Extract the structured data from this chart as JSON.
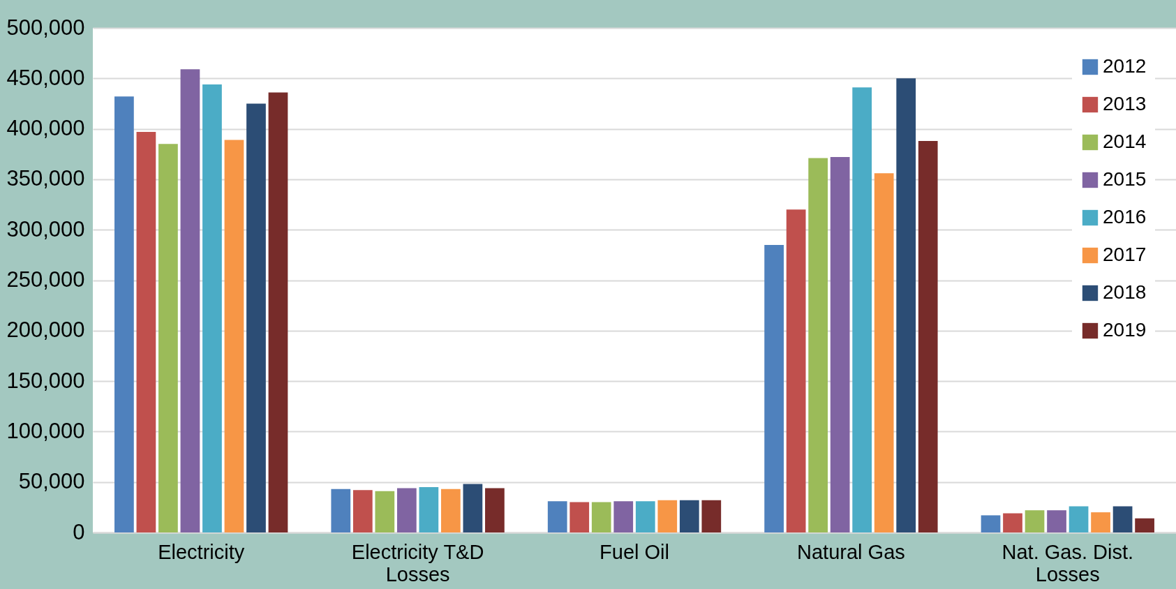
{
  "chart_data": {
    "type": "bar",
    "categories": [
      "Electricity",
      "Electricity T&D Losses",
      "Fuel Oil",
      "Natural Gas",
      "Nat. Gas. Dist. Losses"
    ],
    "series": [
      {
        "name": "2012",
        "color": "#4f81bd",
        "values": [
          432000,
          43000,
          31000,
          285000,
          17000
        ]
      },
      {
        "name": "2013",
        "color": "#c0504d",
        "values": [
          397000,
          42000,
          30000,
          320000,
          19000
        ]
      },
      {
        "name": "2014",
        "color": "#9bbb59",
        "values": [
          385000,
          41000,
          30000,
          371000,
          22000
        ]
      },
      {
        "name": "2015",
        "color": "#8064a2",
        "values": [
          459000,
          44000,
          31000,
          372000,
          22000
        ]
      },
      {
        "name": "2016",
        "color": "#4bacc6",
        "values": [
          444000,
          45000,
          31000,
          441000,
          26000
        ]
      },
      {
        "name": "2017",
        "color": "#f79646",
        "values": [
          389000,
          43000,
          32000,
          356000,
          20000
        ]
      },
      {
        "name": "2018",
        "color": "#2c4d75",
        "values": [
          425000,
          48000,
          32000,
          450000,
          26000
        ]
      },
      {
        "name": "2019",
        "color": "#772c2a",
        "values": [
          436000,
          44000,
          32000,
          388000,
          14000
        ]
      }
    ],
    "ylim": [
      0,
      500000
    ],
    "yticks": [
      0,
      {
        "value": 50000,
        "label": "50,000"
      },
      {
        "value": 100000,
        "label": "100,000"
      },
      {
        "value": 150000,
        "label": "150,000"
      },
      {
        "value": 200000,
        "label": "200,000"
      },
      {
        "value": 250000,
        "label": "250,000"
      },
      {
        "value": 300000,
        "label": "300,000"
      },
      {
        "value": 350000,
        "label": "350,000"
      },
      {
        "value": 400000,
        "label": "400,000"
      },
      {
        "value": 450000,
        "label": "450,000"
      },
      {
        "value": 500000,
        "label": "500,000"
      }
    ],
    "grid": "y",
    "legend": "top right"
  }
}
